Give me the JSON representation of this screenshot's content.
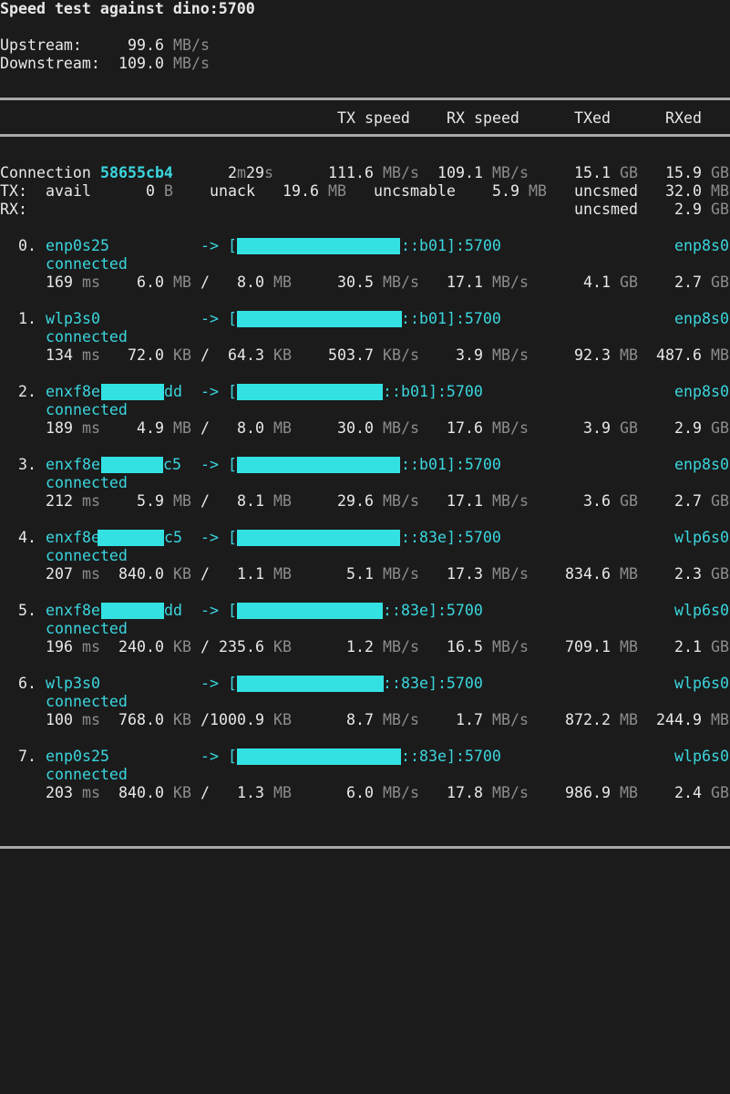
{
  "header": {
    "title": "Speed test against dino:5700",
    "upstream_label": "Upstream:",
    "upstream_value": "99.6",
    "downstream_label": "Downstream:",
    "downstream_value": "109.0",
    "unit": "MB/s"
  },
  "columns": {
    "tx_speed": "TX speed",
    "rx_speed": "RX speed",
    "txed": "TXed",
    "rxed": "RXed"
  },
  "connection": {
    "label": "Connection",
    "id": "58655cb4",
    "uptime_num": "2",
    "uptime_m": "m",
    "uptime_sec": "29",
    "uptime_s": "s",
    "tx_speed": "111.6",
    "tx_speed_unit": "MB/s",
    "rx_speed": "109.1",
    "rx_speed_unit": "MB/s",
    "txed": "15.1",
    "txed_unit": "GB",
    "rxed": "15.9",
    "rxed_unit": "GB",
    "tx_label": "TX:",
    "avail_label": "avail",
    "avail_value": "0",
    "avail_unit": "B",
    "unack_label": "unack",
    "unack_value": "19.6",
    "unack_unit": "MB",
    "uncsmable_label": "uncsmable",
    "uncsmable_value": "5.9",
    "uncsmable_unit": "MB",
    "uncsmed_label": "uncsmed",
    "uncsmed_tx_value": "32.0",
    "uncsmed_tx_unit": "MB",
    "rx_label": "RX:",
    "uncsmed_rx_value": "2.9",
    "uncsmed_rx_unit": "GB"
  },
  "paths": [
    {
      "idx": "0.",
      "iface": "enp0s25",
      "arrow": "-> [",
      "addr_tail": "::b01]:5700",
      "remote": "enp8s0",
      "status": "connected",
      "rtt": "169",
      "rtt_unit": "ms",
      "inflight": "6.0",
      "inflight_unit": "MB",
      "sep": "/",
      "cwnd": "8.0",
      "cwnd_unit": "MB",
      "tx": "30.5",
      "tx_unit": "MB/s",
      "rx": "17.1",
      "rx_unit": "MB/s",
      "txed": "4.1",
      "txed_unit": "GB",
      "rxed": "2.7",
      "rxed_unit": "GB"
    },
    {
      "idx": "1.",
      "iface": "wlp3s0",
      "arrow": "-> [",
      "addr_tail": "::b01]:5700",
      "remote": "enp8s0",
      "status": "connected",
      "rtt": "134",
      "rtt_unit": "ms",
      "inflight": "72.0",
      "inflight_unit": "KB",
      "sep": "/",
      "cwnd": "64.3",
      "cwnd_unit": "KB",
      "tx": "503.7",
      "tx_unit": "KB/s",
      "rx": "3.9",
      "rx_unit": "MB/s",
      "txed": "92.3",
      "txed_unit": "MB",
      "rxed": "487.6",
      "rxed_unit": "MB"
    },
    {
      "idx": "2.",
      "iface": "enxf8e",
      "iface_suffix": "dd",
      "arrow": "-> [",
      "addr_tail": "::b01]:5700",
      "remote": "enp8s0",
      "status": "connected",
      "rtt": "189",
      "rtt_unit": "ms",
      "inflight": "4.9",
      "inflight_unit": "MB",
      "sep": "/",
      "cwnd": "8.0",
      "cwnd_unit": "MB",
      "tx": "30.0",
      "tx_unit": "MB/s",
      "rx": "17.6",
      "rx_unit": "MB/s",
      "txed": "3.9",
      "txed_unit": "GB",
      "rxed": "2.9",
      "rxed_unit": "GB"
    },
    {
      "idx": "3.",
      "iface": "enxf8e",
      "iface_suffix": "c5",
      "arrow": "-> [",
      "addr_tail": "::b01]:5700",
      "remote": "enp8s0",
      "status": "connected",
      "rtt": "212",
      "rtt_unit": "ms",
      "inflight": "5.9",
      "inflight_unit": "MB",
      "sep": "/",
      "cwnd": "8.1",
      "cwnd_unit": "MB",
      "tx": "29.6",
      "tx_unit": "MB/s",
      "rx": "17.1",
      "rx_unit": "MB/s",
      "txed": "3.6",
      "txed_unit": "GB",
      "rxed": "2.7",
      "rxed_unit": "GB"
    },
    {
      "idx": "4.",
      "iface": "enxf8e",
      "iface_suffix": "c5",
      "arrow": "-> [",
      "addr_tail": "::83e]:5700",
      "remote": "wlp6s0",
      "status": "connected",
      "rtt": "207",
      "rtt_unit": "ms",
      "inflight": "840.0",
      "inflight_unit": "KB",
      "sep": "/",
      "cwnd": "1.1",
      "cwnd_unit": "MB",
      "tx": "5.1",
      "tx_unit": "MB/s",
      "rx": "17.3",
      "rx_unit": "MB/s",
      "txed": "834.6",
      "txed_unit": "MB",
      "rxed": "2.3",
      "rxed_unit": "GB"
    },
    {
      "idx": "5.",
      "iface": "enxf8e",
      "iface_suffix": "dd",
      "arrow": "-> [",
      "addr_tail": "::83e]:5700",
      "remote": "wlp6s0",
      "status": "connected",
      "rtt": "196",
      "rtt_unit": "ms",
      "inflight": "240.0",
      "inflight_unit": "KB",
      "sep": "/",
      "cwnd": "235.6",
      "cwnd_unit": "KB",
      "tx": "1.2",
      "tx_unit": "MB/s",
      "rx": "16.5",
      "rx_unit": "MB/s",
      "txed": "709.1",
      "txed_unit": "MB",
      "rxed": "2.1",
      "rxed_unit": "GB"
    },
    {
      "idx": "6.",
      "iface": "wlp3s0",
      "arrow": "-> [",
      "addr_tail": "::83e]:5700",
      "remote": "wlp6s0",
      "status": "connected",
      "rtt": "100",
      "rtt_unit": "ms",
      "inflight": "768.0",
      "inflight_unit": "KB",
      "sep": "/",
      "cwnd": "1000.9",
      "cwnd_unit": "KB",
      "tx": "8.7",
      "tx_unit": "MB/s",
      "rx": "1.7",
      "rx_unit": "MB/s",
      "txed": "872.2",
      "txed_unit": "MB",
      "rxed": "244.9",
      "rxed_unit": "MB"
    },
    {
      "idx": "7.",
      "iface": "enp0s25",
      "arrow": "-> [",
      "addr_tail": "::83e]:5700",
      "remote": "wlp6s0",
      "status": "connected",
      "rtt": "203",
      "rtt_unit": "ms",
      "inflight": "840.0",
      "inflight_unit": "KB",
      "sep": "/",
      "cwnd": "1.3",
      "cwnd_unit": "MB",
      "tx": "6.0",
      "tx_unit": "MB/s",
      "rx": "17.8",
      "rx_unit": "MB/s",
      "txed": "986.9",
      "txed_unit": "MB",
      "rxed": "2.4",
      "rxed_unit": "GB"
    }
  ]
}
